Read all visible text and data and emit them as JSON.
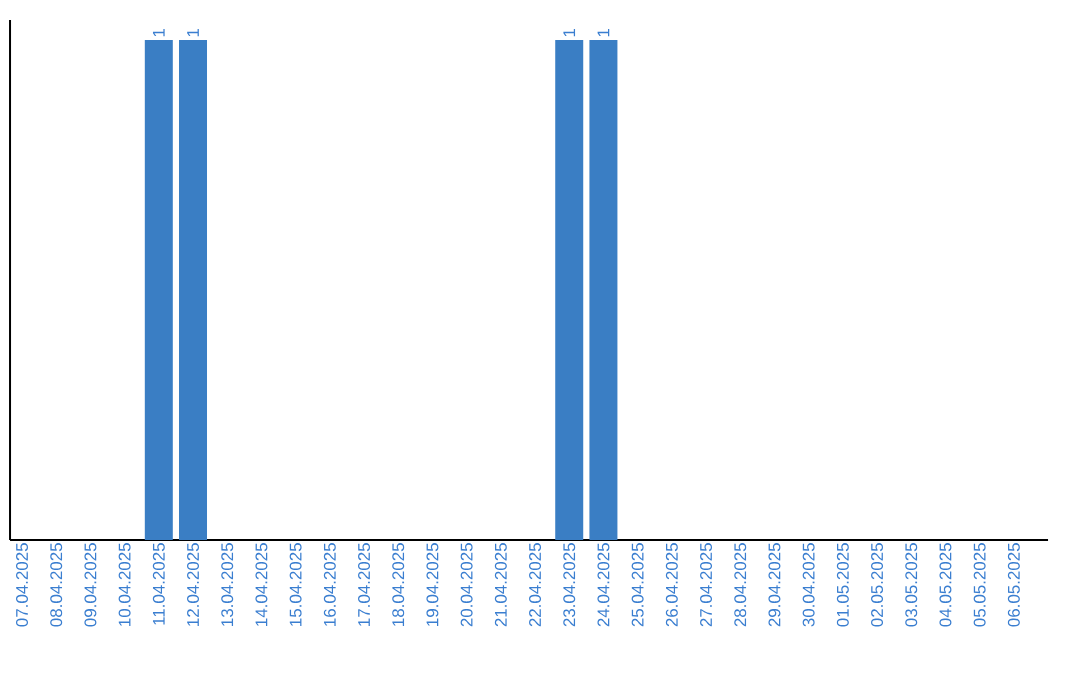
{
  "chart_data": {
    "type": "bar",
    "color": "#3a7ec4",
    "categories": [
      "07.04.2025",
      "08.04.2025",
      "09.04.2025",
      "10.04.2025",
      "11.04.2025",
      "12.04.2025",
      "13.04.2025",
      "14.04.2025",
      "15.04.2025",
      "16.04.2025",
      "17.04.2025",
      "18.04.2025",
      "19.04.2025",
      "20.04.2025",
      "21.04.2025",
      "22.04.2025",
      "23.04.2025",
      "24.04.2025",
      "25.04.2025",
      "26.04.2025",
      "27.04.2025",
      "28.04.2025",
      "29.04.2025",
      "30.04.2025",
      "01.05.2025",
      "02.05.2025",
      "03.05.2025",
      "04.05.2025",
      "05.05.2025",
      "06.05.2025"
    ],
    "values": [
      0,
      0,
      0,
      0,
      1,
      1,
      0,
      0,
      0,
      0,
      0,
      0,
      0,
      0,
      0,
      0,
      1,
      1,
      0,
      0,
      0,
      0,
      0,
      0,
      0,
      0,
      0,
      0,
      0,
      0
    ],
    "value_labels": [
      null,
      null,
      null,
      null,
      "1",
      "1",
      null,
      null,
      null,
      null,
      null,
      null,
      null,
      null,
      null,
      null,
      "1",
      "1",
      null,
      null,
      null,
      null,
      null,
      null,
      null,
      null,
      null,
      null,
      null,
      null
    ],
    "tick_labels": "x"
  }
}
